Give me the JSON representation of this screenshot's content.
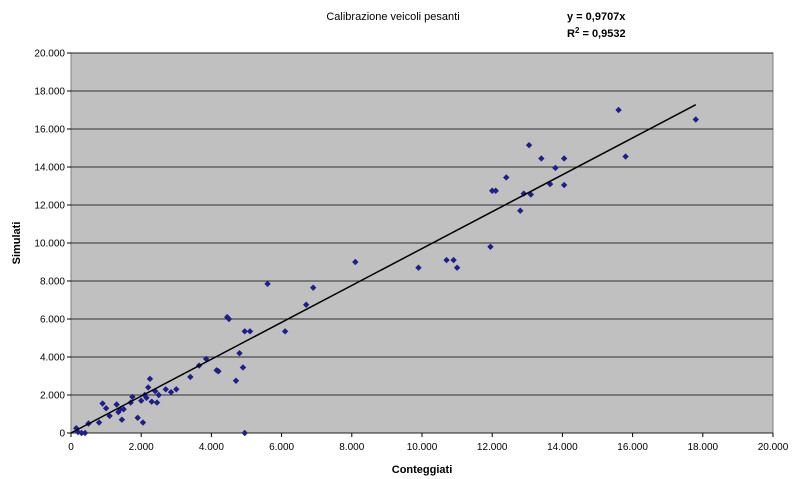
{
  "chart_data": {
    "type": "scatter",
    "title": "Calibrazione veicoli pesanti",
    "equation": "y = 0,9707x",
    "r2_prefix": "R",
    "r2_exp": "2",
    "r2_value": " = 0,9532",
    "xlabel": "Conteggiati",
    "ylabel": "Simulati",
    "xlim": [
      0,
      20000
    ],
    "ylim": [
      0,
      20000
    ],
    "x_ticks": [
      0,
      2000,
      4000,
      6000,
      8000,
      10000,
      12000,
      14000,
      16000,
      18000,
      20000
    ],
    "x_tick_labels": [
      "0",
      "2.000",
      "4.000",
      "6.000",
      "8.000",
      "10.000",
      "12.000",
      "14.000",
      "16.000",
      "18.000",
      "20.000"
    ],
    "y_ticks": [
      0,
      2000,
      4000,
      6000,
      8000,
      10000,
      12000,
      14000,
      16000,
      18000,
      20000
    ],
    "y_tick_labels": [
      "0",
      "2.000",
      "4.000",
      "6.000",
      "8.000",
      "10.000",
      "12.000",
      "14.000",
      "16.000",
      "18.000",
      "20.000"
    ],
    "grid": "horizontal",
    "plot_background": "#c0c0c0",
    "marker_color": "#1f1f8c",
    "trendline": {
      "slope": 0.9707,
      "x_range": [
        0,
        17800
      ],
      "color": "#000000"
    },
    "series": [
      {
        "points": [
          [
            150,
            250
          ],
          [
            200,
            50
          ],
          [
            300,
            0
          ],
          [
            400,
            0
          ],
          [
            500,
            500
          ],
          [
            800,
            550
          ],
          [
            900,
            1550
          ],
          [
            1000,
            1300
          ],
          [
            1100,
            900
          ],
          [
            1300,
            1500
          ],
          [
            1350,
            1100
          ],
          [
            1400,
            1250
          ],
          [
            1450,
            700
          ],
          [
            1500,
            1250
          ],
          [
            1700,
            1600
          ],
          [
            1750,
            1900
          ],
          [
            1900,
            800
          ],
          [
            2000,
            1700
          ],
          [
            2050,
            550
          ],
          [
            2100,
            2000
          ],
          [
            2150,
            1850
          ],
          [
            2200,
            2400
          ],
          [
            2250,
            2850
          ],
          [
            2300,
            1650
          ],
          [
            2400,
            2200
          ],
          [
            2450,
            1600
          ],
          [
            2500,
            2000
          ],
          [
            2700,
            2300
          ],
          [
            2850,
            2150
          ],
          [
            3000,
            2300
          ],
          [
            3400,
            2950
          ],
          [
            3650,
            3550
          ],
          [
            3850,
            3900
          ],
          [
            4150,
            3300
          ],
          [
            4200,
            3250
          ],
          [
            4450,
            6100
          ],
          [
            4500,
            6000
          ],
          [
            4700,
            2750
          ],
          [
            4800,
            4200
          ],
          [
            4900,
            3450
          ],
          [
            4950,
            5350
          ],
          [
            4950,
            0
          ],
          [
            5100,
            5350
          ],
          [
            5600,
            7850
          ],
          [
            6100,
            5350
          ],
          [
            6700,
            6750
          ],
          [
            6900,
            7650
          ],
          [
            8100,
            9000
          ],
          [
            9900,
            8700
          ],
          [
            10700,
            9100
          ],
          [
            10900,
            9100
          ],
          [
            11000,
            8700
          ],
          [
            11950,
            9800
          ],
          [
            12000,
            12750
          ],
          [
            12100,
            12750
          ],
          [
            12400,
            13450
          ],
          [
            12800,
            11700
          ],
          [
            12900,
            12600
          ],
          [
            13050,
            15150
          ],
          [
            13100,
            12550
          ],
          [
            13400,
            14450
          ],
          [
            13650,
            13100
          ],
          [
            13800,
            13950
          ],
          [
            14050,
            14450
          ],
          [
            14050,
            13050
          ],
          [
            15600,
            17000
          ],
          [
            15800,
            14550
          ],
          [
            17800,
            16500
          ]
        ]
      }
    ]
  }
}
